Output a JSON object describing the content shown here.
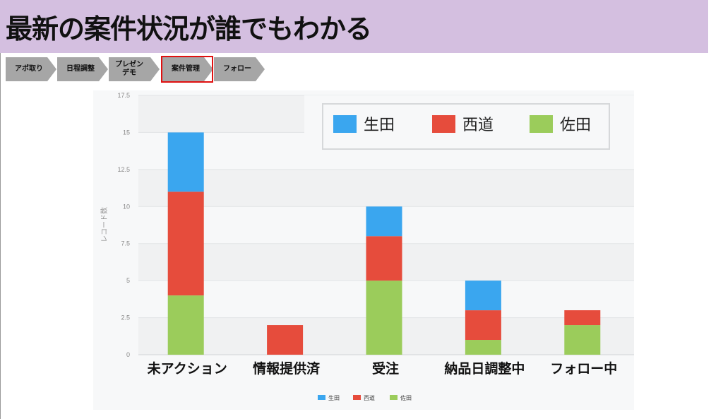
{
  "header": {
    "title": "最新の案件状況が誰でもわかる"
  },
  "process_steps": [
    {
      "label": "アポ取り",
      "active": false
    },
    {
      "label": "日程調整",
      "active": false
    },
    {
      "label": "プレゼン\nデモ",
      "active": false
    },
    {
      "label": "案件管理",
      "active": true
    },
    {
      "label": "フォロー",
      "active": false
    }
  ],
  "colors": {
    "header_bg": "#d4bfe0",
    "step_bg": "#a6a6a6",
    "highlight": "#e01010"
  },
  "chart_data": {
    "type": "bar",
    "stacked": true,
    "categories": [
      "未アクション",
      "情報提供済",
      "受注",
      "納品日調整中",
      "フォロー中"
    ],
    "series": [
      {
        "name": "佐田",
        "color": "#9bcc5b",
        "values": [
          4,
          0,
          5,
          1,
          2
        ]
      },
      {
        "name": "西道",
        "color": "#e64c3c",
        "values": [
          7,
          2,
          3,
          2,
          1
        ]
      },
      {
        "name": "生田",
        "color": "#3aa6ef",
        "values": [
          4,
          0,
          2,
          2,
          0
        ]
      }
    ],
    "ylabel": "レコード数",
    "ylim": [
      0,
      17.5
    ],
    "yticks": [
      "0",
      "2.5",
      "5",
      "7.5",
      "10",
      "12.5",
      "15",
      "17.5"
    ],
    "grid": true,
    "legend_order": [
      "生田",
      "西道",
      "佐田"
    ],
    "legend_position": "top-right"
  }
}
